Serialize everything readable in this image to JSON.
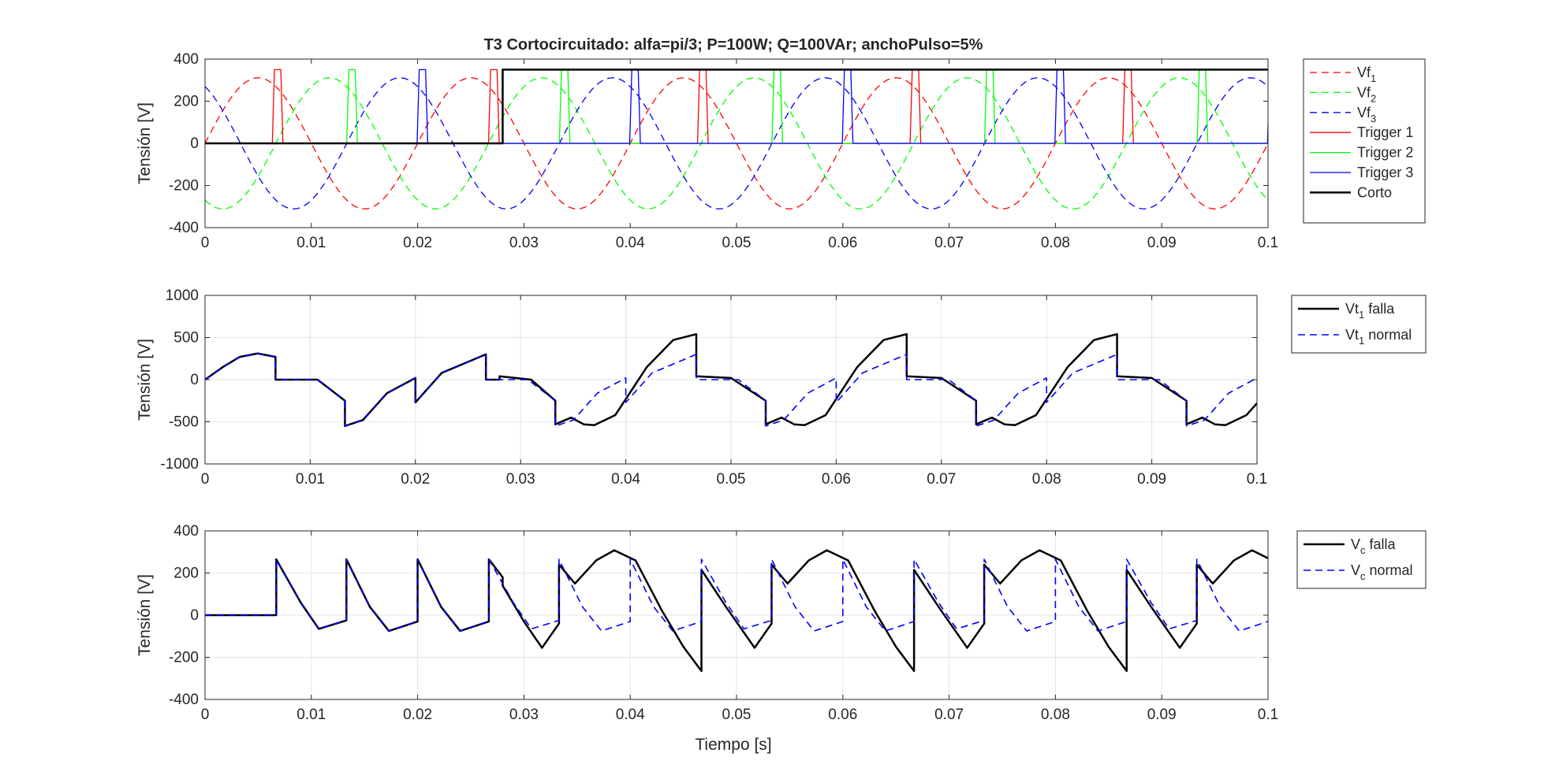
{
  "figure": {
    "xlabel": "Tiempo [s]"
  },
  "chart_data": [
    {
      "type": "line",
      "title": "T3 Cortocircuitado: alfa=pi/3; P=100W; Q=100VAr; anchoPulso=5%",
      "ylabel": "Tensión [V]",
      "xlim": [
        0,
        0.1
      ],
      "ylim": [
        -400,
        400
      ],
      "xticks": [
        "0",
        "0.01",
        "0.02",
        "0.03",
        "0.04",
        "0.05",
        "0.06",
        "0.07",
        "0.08",
        "0.09",
        "0.1"
      ],
      "yticks": [
        "400",
        "200",
        "0",
        "-200",
        "-400"
      ],
      "grid": false,
      "legend_position": "outside-right",
      "series": [
        {
          "name": "Vf",
          "sub": "1",
          "color": "#ff0000",
          "dash": "dashed",
          "kind": "sine",
          "amplitude": 311,
          "frequency_hz": 50,
          "phase_deg": 0
        },
        {
          "name": "Vf",
          "sub": "2",
          "color": "#00ff00",
          "dash": "dashed",
          "kind": "sine",
          "amplitude": 311,
          "frequency_hz": 50,
          "phase_deg": -120
        },
        {
          "name": "Vf",
          "sub": "3",
          "color": "#0000ff",
          "dash": "dashed",
          "kind": "sine",
          "amplitude": 311,
          "frequency_hz": 50,
          "phase_deg": 120
        },
        {
          "name": "Trigger 1",
          "color": "#ff0000",
          "dash": "solid",
          "kind": "pulses",
          "level": 350,
          "pulse_width": 0.001,
          "starts": [
            0.00633,
            0.02667,
            0.04633,
            0.06633,
            0.08633
          ]
        },
        {
          "name": "Trigger 2",
          "color": "#00ff00",
          "dash": "solid",
          "kind": "pulses",
          "level": 350,
          "pulse_width": 0.001,
          "starts": [
            0.01333,
            0.03333,
            0.05333,
            0.07333,
            0.09333
          ]
        },
        {
          "name": "Trigger 3",
          "color": "#0000ff",
          "dash": "solid",
          "kind": "pulses",
          "level": 350,
          "pulse_width": 0.001,
          "starts": [
            0.01995,
            0.03995,
            0.05995,
            0.07995,
            0.09995
          ]
        },
        {
          "name": "Corto",
          "color": "#000000",
          "dash": "solid",
          "kind": "step",
          "width": 2.5,
          "x": [
            0,
            0.028,
            0.028,
            0.1
          ],
          "y": [
            0,
            0,
            350,
            350
          ]
        }
      ]
    },
    {
      "type": "line",
      "ylabel": "Tensión [V]",
      "xlim": [
        0,
        0.1
      ],
      "ylim": [
        -1000,
        1000
      ],
      "xticks": [
        "0",
        "0.01",
        "0.02",
        "0.03",
        "0.04",
        "0.05",
        "0.06",
        "0.07",
        "0.08",
        "0.09",
        "0.1"
      ],
      "yticks": [
        "1000",
        "500",
        "0",
        "-500",
        "-1000"
      ],
      "grid": true,
      "legend_position": "outside-right",
      "series": [
        {
          "name": "Vt",
          "sub": "1",
          "suffix": " falla",
          "color": "#000000",
          "dash": "solid",
          "width": 2.5,
          "x": [
            0,
            0.0017,
            0.0033,
            0.005,
            0.0067,
            0.0067,
            0.0107,
            0.0133,
            0.0133,
            0.015,
            0.0173,
            0.02,
            0.02,
            0.0225,
            0.0267,
            0.0267,
            0.028,
            0.028,
            0.031,
            0.0333,
            0.0333,
            0.0348,
            0.036,
            0.037,
            0.039,
            0.042,
            0.0445,
            0.0467,
            0.0467,
            0.05,
            0.0533,
            0.0533,
            0.0548,
            0.056,
            0.057,
            0.059,
            0.062,
            0.0645,
            0.0667,
            0.0667,
            0.07,
            0.0733,
            0.0733,
            0.0748,
            0.076,
            0.077,
            0.079,
            0.082,
            0.0845,
            0.0867,
            0.0867,
            0.09,
            0.0933,
            0.0933,
            0.0948,
            0.096,
            0.097,
            0.099,
            0.1
          ],
          "y": [
            0,
            150,
            270,
            311,
            270,
            0,
            0,
            -250,
            -550,
            -480,
            -160,
            20,
            -270,
            80,
            300,
            0,
            0,
            40,
            0,
            -250,
            -530,
            -450,
            -530,
            -540,
            -420,
            150,
            470,
            540,
            40,
            20,
            -250,
            -530,
            -450,
            -530,
            -540,
            -420,
            150,
            470,
            540,
            40,
            20,
            -250,
            -530,
            -450,
            -530,
            -540,
            -420,
            150,
            470,
            540,
            40,
            20,
            -250,
            -530,
            -450,
            -530,
            -540,
            -420,
            -280
          ]
        },
        {
          "name": "Vt",
          "sub": "1",
          "suffix": " normal",
          "color": "#0000ff",
          "dash": "dashed",
          "width": 1.6,
          "x": [
            0,
            0.0017,
            0.0033,
            0.005,
            0.0067,
            0.0067,
            0.0107,
            0.0133,
            0.0133,
            0.015,
            0.0173,
            0.02,
            0.02,
            0.0225,
            0.0267,
            0.0267,
            0.0307,
            0.0333,
            0.0333,
            0.035,
            0.0373,
            0.04,
            0.04,
            0.0425,
            0.0467,
            0.0467,
            0.0507,
            0.0533,
            0.0533,
            0.055,
            0.0573,
            0.06,
            0.06,
            0.0625,
            0.0667,
            0.0667,
            0.0707,
            0.0733,
            0.0733,
            0.075,
            0.0773,
            0.08,
            0.08,
            0.0825,
            0.0867,
            0.0867,
            0.0907,
            0.0933,
            0.0933,
            0.095,
            0.0973,
            0.1
          ],
          "y": [
            0,
            150,
            270,
            311,
            270,
            0,
            0,
            -250,
            -550,
            -480,
            -160,
            20,
            -270,
            80,
            300,
            0,
            0,
            -250,
            -550,
            -480,
            -160,
            20,
            -270,
            80,
            300,
            0,
            0,
            -250,
            -550,
            -480,
            -160,
            20,
            -270,
            80,
            300,
            0,
            0,
            -250,
            -550,
            -480,
            -160,
            20,
            -270,
            80,
            300,
            0,
            0,
            -250,
            -550,
            -480,
            -160,
            20
          ]
        }
      ]
    },
    {
      "type": "line",
      "ylabel": "Tensión [V]",
      "xlim": [
        0,
        0.1
      ],
      "ylim": [
        -400,
        400
      ],
      "xticks": [
        "0",
        "0.01",
        "0.02",
        "0.03",
        "0.04",
        "0.05",
        "0.06",
        "0.07",
        "0.08",
        "0.09",
        "0.1"
      ],
      "yticks": [
        "400",
        "200",
        "0",
        "-200",
        "-400"
      ],
      "grid": true,
      "legend_position": "outside-right",
      "series": [
        {
          "name": "V",
          "sub": "c",
          "suffix": " falla",
          "color": "#000000",
          "dash": "solid",
          "width": 2.5,
          "x": [
            0,
            0.0067,
            0.0067,
            0.009,
            0.0107,
            0.0133,
            0.0133,
            0.0155,
            0.0173,
            0.02,
            0.02,
            0.0222,
            0.024,
            0.0267,
            0.0267,
            0.028,
            0.028,
            0.03,
            0.0317,
            0.0333,
            0.0333,
            0.0348,
            0.0368,
            0.0385,
            0.0405,
            0.043,
            0.045,
            0.0467,
            0.0467,
            0.049,
            0.0517,
            0.0533,
            0.0533,
            0.0548,
            0.0568,
            0.0585,
            0.0605,
            0.063,
            0.065,
            0.0667,
            0.0667,
            0.069,
            0.0717,
            0.0733,
            0.0733,
            0.0748,
            0.0768,
            0.0785,
            0.0805,
            0.083,
            0.085,
            0.0867,
            0.0867,
            0.089,
            0.0917,
            0.0933,
            0.0933,
            0.0948,
            0.0968,
            0.0985,
            0.1
          ],
          "y": [
            0,
            0,
            265,
            60,
            -65,
            -25,
            265,
            40,
            -75,
            -30,
            265,
            40,
            -75,
            -30,
            265,
            180,
            140,
            -30,
            -155,
            -40,
            240,
            150,
            260,
            308,
            260,
            20,
            -150,
            -265,
            215,
            40,
            -155,
            -40,
            240,
            150,
            260,
            308,
            260,
            20,
            -150,
            -265,
            215,
            40,
            -155,
            -40,
            240,
            150,
            260,
            308,
            260,
            20,
            -150,
            -265,
            215,
            40,
            -155,
            -40,
            240,
            150,
            260,
            308,
            270
          ]
        },
        {
          "name": "V",
          "sub": "c",
          "suffix": " normal",
          "color": "#0000ff",
          "dash": "dashed",
          "width": 1.6,
          "x": [
            0,
            0.0067,
            0.0067,
            0.009,
            0.0107,
            0.0133,
            0.0133,
            0.0155,
            0.0173,
            0.02,
            0.02,
            0.0222,
            0.024,
            0.0267,
            0.0267,
            0.029,
            0.0307,
            0.0333,
            0.0333,
            0.0355,
            0.0373,
            0.04,
            0.04,
            0.0422,
            0.044,
            0.0467,
            0.0467,
            0.049,
            0.0507,
            0.0533,
            0.0533,
            0.0555,
            0.0573,
            0.06,
            0.06,
            0.0622,
            0.064,
            0.0667,
            0.0667,
            0.069,
            0.0707,
            0.0733,
            0.0733,
            0.0755,
            0.0773,
            0.08,
            0.08,
            0.0822,
            0.084,
            0.0867,
            0.0867,
            0.089,
            0.0907,
            0.0933,
            0.0933,
            0.0955,
            0.0973,
            0.1
          ],
          "y": [
            0,
            0,
            265,
            60,
            -65,
            -25,
            265,
            40,
            -75,
            -30,
            265,
            40,
            -75,
            -30,
            265,
            60,
            -65,
            -25,
            265,
            40,
            -75,
            -30,
            265,
            40,
            -75,
            -30,
            265,
            60,
            -65,
            -25,
            265,
            40,
            -75,
            -30,
            265,
            40,
            -75,
            -30,
            265,
            60,
            -65,
            -25,
            265,
            40,
            -75,
            -30,
            265,
            40,
            -75,
            -30,
            265,
            60,
            -65,
            -25,
            265,
            40,
            -75,
            -30
          ]
        }
      ]
    }
  ]
}
